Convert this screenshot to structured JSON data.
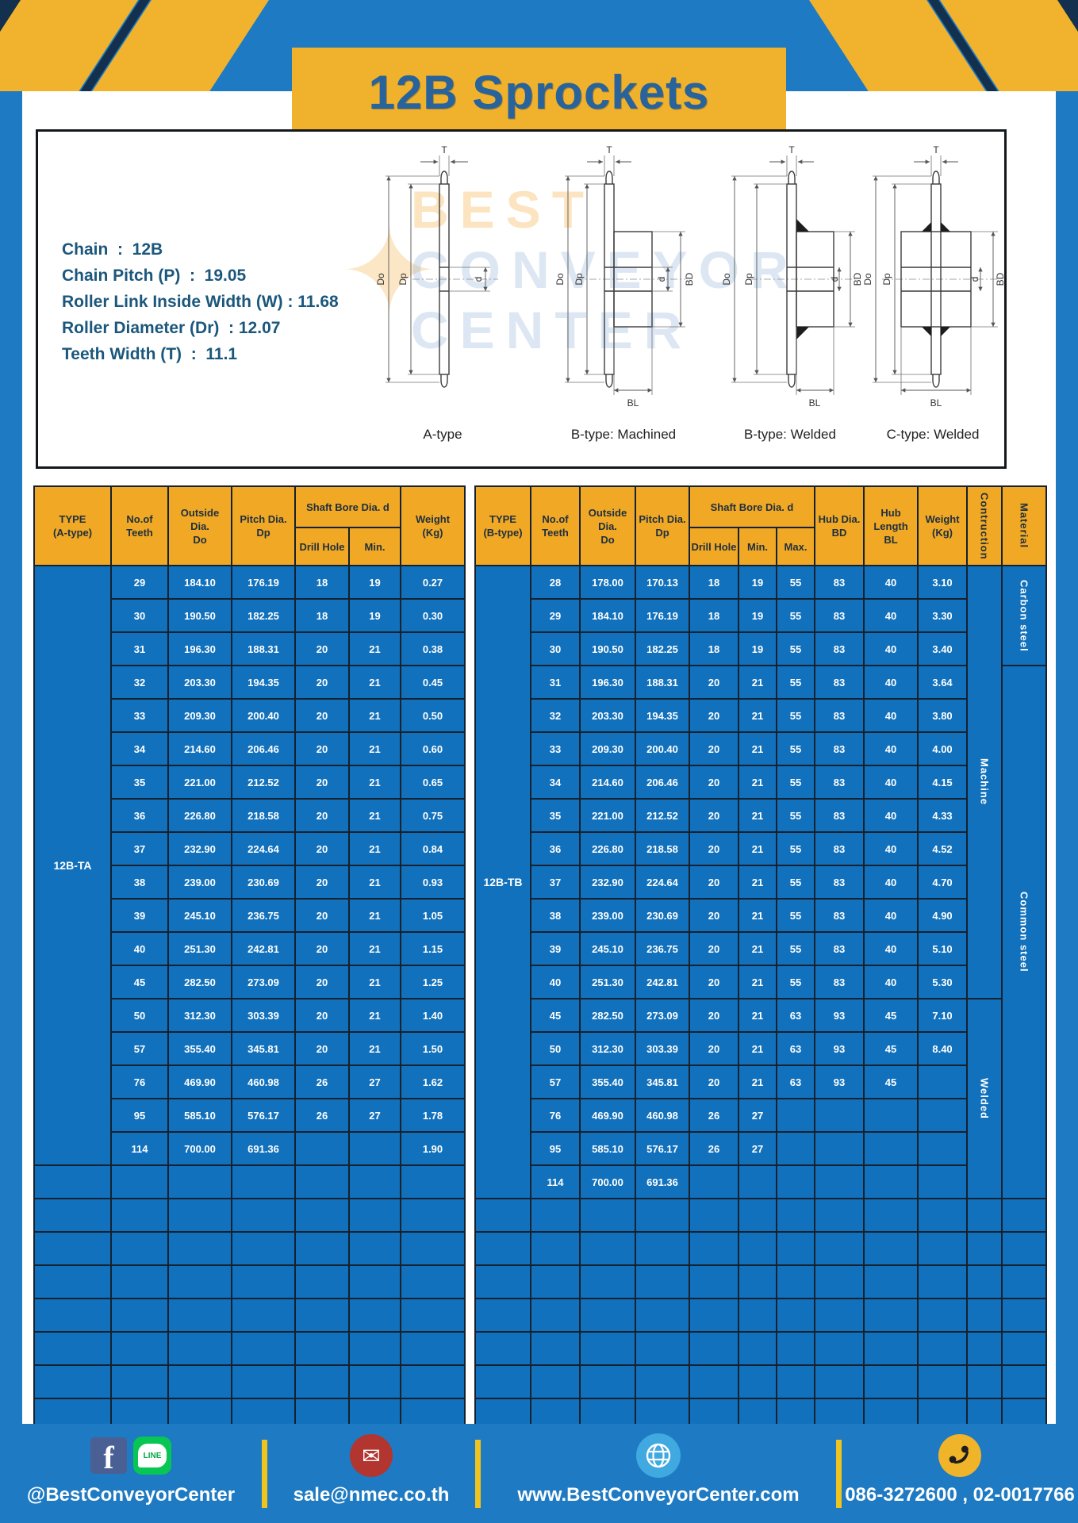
{
  "title": "12B Sprockets",
  "colors": {
    "page_blue": "#1E7AC2",
    "cell_blue": "#1271BC",
    "table_header_yellow": "#F0A825",
    "accent_yellow": "#F1B32E",
    "title_text_blue": "#28639B",
    "facebook_blue": "#4A5F94",
    "line_green": "#07C654",
    "mail_red": "#B23530",
    "globe_blue": "#3FA9E0",
    "phone_yellow": "#F0B42A"
  },
  "specs": {
    "lines": "Chain  :  12B\nChain Pitch (P)  :  19.05\nRoller Link Inside Width (W) : 11.68\nRoller Diameter (Dr)  : 12.07\nTeeth Width (T)  :  11.1"
  },
  "watermark": {
    "line1": "BEST",
    "line2": "CONVEYOR",
    "line3": "CENTER",
    "star": "✦"
  },
  "diagrams": {
    "captions": [
      "A-type",
      "B-type: Machined",
      "B-type: Welded",
      "C-type: Welded"
    ],
    "dims": {
      "t": "T",
      "outside": "Do",
      "pitch": "Dp",
      "bore": "d",
      "hub_dia": "BD",
      "hub_len": "BL"
    }
  },
  "table_a": {
    "header": {
      "type1": "TYPE",
      "type2": "(A-type)",
      "teeth1": "No.of",
      "teeth2": "Teeth",
      "out1": "Outside",
      "out2": "Dia.",
      "out3": "Do",
      "pitch1": "Pitch Dia.",
      "pitch2": "Dp",
      "shaft": "Shaft Bore Dia. d",
      "drill": "Drill Hole",
      "min": "Min.",
      "weight1": "Weight",
      "weight2": "(Kg)"
    },
    "type_label": "12B-TA",
    "rows": [
      [
        "29",
        "184.10",
        "176.19",
        "18",
        "19",
        "0.27"
      ],
      [
        "30",
        "190.50",
        "182.25",
        "18",
        "19",
        "0.30"
      ],
      [
        "31",
        "196.30",
        "188.31",
        "20",
        "21",
        "0.38"
      ],
      [
        "32",
        "203.30",
        "194.35",
        "20",
        "21",
        "0.45"
      ],
      [
        "33",
        "209.30",
        "200.40",
        "20",
        "21",
        "0.50"
      ],
      [
        "34",
        "214.60",
        "206.46",
        "20",
        "21",
        "0.60"
      ],
      [
        "35",
        "221.00",
        "212.52",
        "20",
        "21",
        "0.65"
      ],
      [
        "36",
        "226.80",
        "218.58",
        "20",
        "21",
        "0.75"
      ],
      [
        "37",
        "232.90",
        "224.64",
        "20",
        "21",
        "0.84"
      ],
      [
        "38",
        "239.00",
        "230.69",
        "20",
        "21",
        "0.93"
      ],
      [
        "39",
        "245.10",
        "236.75",
        "20",
        "21",
        "1.05"
      ],
      [
        "40",
        "251.30",
        "242.81",
        "20",
        "21",
        "1.15"
      ],
      [
        "45",
        "282.50",
        "273.09",
        "20",
        "21",
        "1.25"
      ],
      [
        "50",
        "312.30",
        "303.39",
        "20",
        "21",
        "1.40"
      ],
      [
        "57",
        "355.40",
        "345.81",
        "20",
        "21",
        "1.50"
      ],
      [
        "76",
        "469.90",
        "460.98",
        "26",
        "27",
        "1.62"
      ],
      [
        "95",
        "585.10",
        "576.17",
        "26",
        "27",
        "1.78"
      ],
      [
        "114",
        "700.00",
        "691.36",
        "",
        "",
        "1.90"
      ]
    ],
    "blank_rows": 8
  },
  "table_b": {
    "header": {
      "type1": "TYPE",
      "type2": "(B-type)",
      "teeth1": "No.of",
      "teeth2": "Teeth",
      "out1": "Outside",
      "out2": "Dia.",
      "out3": "Do",
      "pitch1": "Pitch Dia.",
      "pitch2": "Dp",
      "shaft": "Shaft Bore Dia. d",
      "drill": "Drill Hole",
      "min": "Min.",
      "max": "Max.",
      "hub_dia1": "Hub Dia.",
      "hub_dia2": "BD",
      "hub_len1": "Hub",
      "hub_len2": "Length",
      "hub_len3": "BL",
      "weight1": "Weight",
      "weight2": "(Kg)",
      "contruction": "Contruction",
      "material": "Material"
    },
    "type_label": "12B-TB",
    "rows": [
      [
        "28",
        "178.00",
        "170.13",
        "18",
        "19",
        "55",
        "83",
        "40",
        "3.10"
      ],
      [
        "29",
        "184.10",
        "176.19",
        "18",
        "19",
        "55",
        "83",
        "40",
        "3.30"
      ],
      [
        "30",
        "190.50",
        "182.25",
        "18",
        "19",
        "55",
        "83",
        "40",
        "3.40"
      ],
      [
        "31",
        "196.30",
        "188.31",
        "20",
        "21",
        "55",
        "83",
        "40",
        "3.64"
      ],
      [
        "32",
        "203.30",
        "194.35",
        "20",
        "21",
        "55",
        "83",
        "40",
        "3.80"
      ],
      [
        "33",
        "209.30",
        "200.40",
        "20",
        "21",
        "55",
        "83",
        "40",
        "4.00"
      ],
      [
        "34",
        "214.60",
        "206.46",
        "20",
        "21",
        "55",
        "83",
        "40",
        "4.15"
      ],
      [
        "35",
        "221.00",
        "212.52",
        "20",
        "21",
        "55",
        "83",
        "40",
        "4.33"
      ],
      [
        "36",
        "226.80",
        "218.58",
        "20",
        "21",
        "55",
        "83",
        "40",
        "4.52"
      ],
      [
        "37",
        "232.90",
        "224.64",
        "20",
        "21",
        "55",
        "83",
        "40",
        "4.70"
      ],
      [
        "38",
        "239.00",
        "230.69",
        "20",
        "21",
        "55",
        "83",
        "40",
        "4.90"
      ],
      [
        "39",
        "245.10",
        "236.75",
        "20",
        "21",
        "55",
        "83",
        "40",
        "5.10"
      ],
      [
        "40",
        "251.30",
        "242.81",
        "20",
        "21",
        "55",
        "83",
        "40",
        "5.30"
      ],
      [
        "45",
        "282.50",
        "273.09",
        "20",
        "21",
        "63",
        "93",
        "45",
        "7.10"
      ],
      [
        "50",
        "312.30",
        "303.39",
        "20",
        "21",
        "63",
        "93",
        "45",
        "8.40"
      ],
      [
        "57",
        "355.40",
        "345.81",
        "20",
        "21",
        "63",
        "93",
        "45",
        ""
      ],
      [
        "76",
        "469.90",
        "460.98",
        "26",
        "27",
        "",
        "",
        "",
        ""
      ],
      [
        "95",
        "585.10",
        "576.17",
        "26",
        "27",
        "",
        "",
        "",
        ""
      ],
      [
        "114",
        "700.00",
        "691.36",
        "",
        "",
        "",
        "",
        "",
        ""
      ]
    ],
    "construction_spans": [
      {
        "label": "Machine",
        "start": 0,
        "span": 13
      },
      {
        "label": "Welded",
        "start": 13,
        "span": 6
      }
    ],
    "material_spans": [
      {
        "label": "Carbon steel",
        "start": 0,
        "span": 3
      },
      {
        "label": "Common steel",
        "start": 3,
        "span": 16
      }
    ],
    "blank_rows": 7
  },
  "footer": {
    "facebook_letter": "f",
    "line_label": "LINE",
    "social": "@BestConveyorCenter",
    "email": "sale@nmec.co.th",
    "website": "www.BestConveyorCenter.com",
    "phone": "086-3272600 , 02-0017766"
  }
}
